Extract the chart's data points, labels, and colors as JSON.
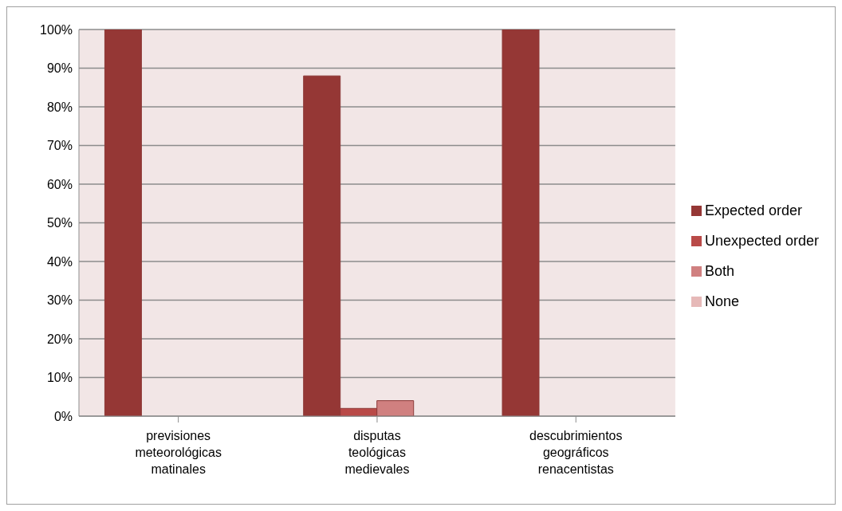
{
  "chart_data": {
    "type": "bar",
    "categories": [
      "previsiones meteorológicas matinales",
      "disputas teológicas medievales",
      "descubrimientos geográficos renacentistas"
    ],
    "series": [
      {
        "name": "Expected order",
        "color": "#953735",
        "values": [
          100,
          88,
          100
        ]
      },
      {
        "name": "Unexpected order",
        "color": "#b94a48",
        "values": [
          0,
          2,
          0
        ]
      },
      {
        "name": "Both",
        "color": "#d08080",
        "values": [
          0,
          4,
          0
        ]
      },
      {
        "name": "None",
        "color": "#e6b9b8",
        "values": [
          0,
          0,
          0
        ]
      }
    ],
    "ylim": [
      0,
      100
    ],
    "yticks": [
      {
        "value": 0,
        "label": "0%"
      },
      {
        "value": 10,
        "label": "10%"
      },
      {
        "value": 20,
        "label": "20%"
      },
      {
        "value": 30,
        "label": "30%"
      },
      {
        "value": 40,
        "label": "40%"
      },
      {
        "value": 50,
        "label": "50%"
      },
      {
        "value": 60,
        "label": "60%"
      },
      {
        "value": 70,
        "label": "70%"
      },
      {
        "value": 80,
        "label": "80%"
      },
      {
        "value": 90,
        "label": "90%"
      },
      {
        "value": 100,
        "label": "100%"
      }
    ],
    "grid": "y",
    "legend": "right"
  }
}
